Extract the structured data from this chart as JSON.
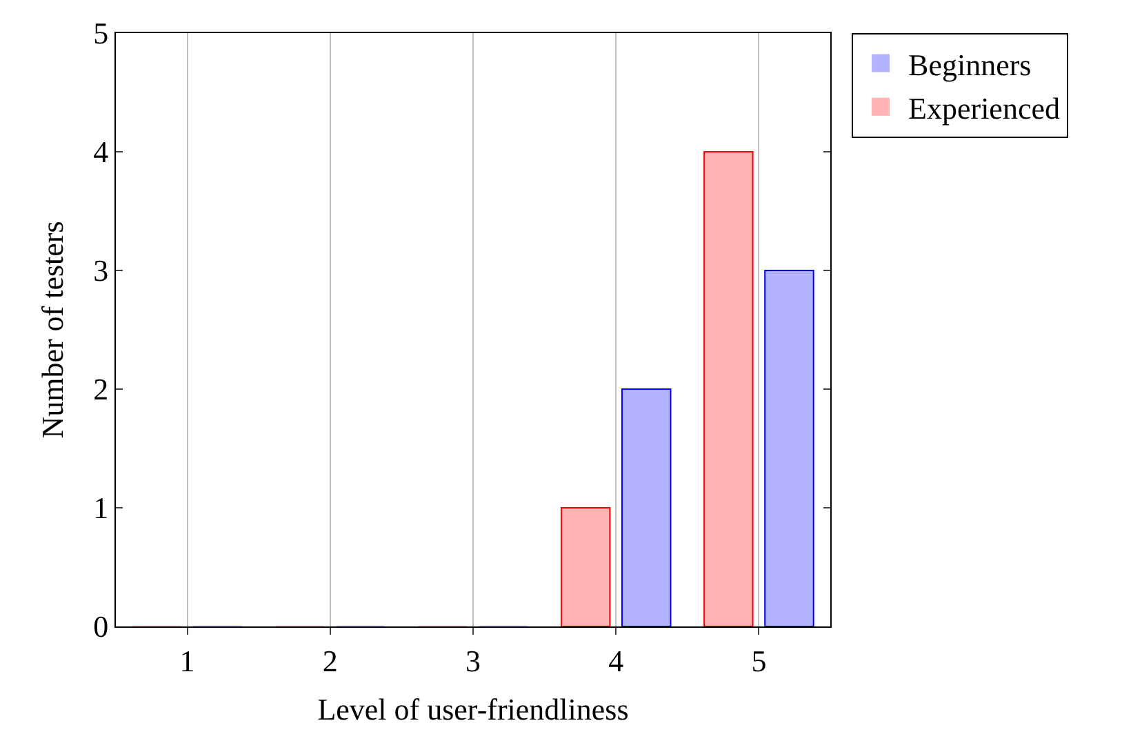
{
  "chart_data": {
    "type": "bar",
    "xlabel": "Level of user-friendliness",
    "ylabel": "Number of testers",
    "categories": [
      "1",
      "2",
      "3",
      "4",
      "5"
    ],
    "series": [
      {
        "name": "Experienced",
        "color": "#ffb3b3",
        "values": [
          0,
          0,
          0,
          1,
          4
        ]
      },
      {
        "name": "Beginners",
        "color": "#b3b3ff",
        "values": [
          0,
          0,
          0,
          2,
          3
        ]
      }
    ],
    "ylim": [
      0,
      5
    ],
    "yticks": [
      0,
      1,
      2,
      3,
      4,
      5
    ],
    "grid": "x",
    "legend": "top right"
  }
}
